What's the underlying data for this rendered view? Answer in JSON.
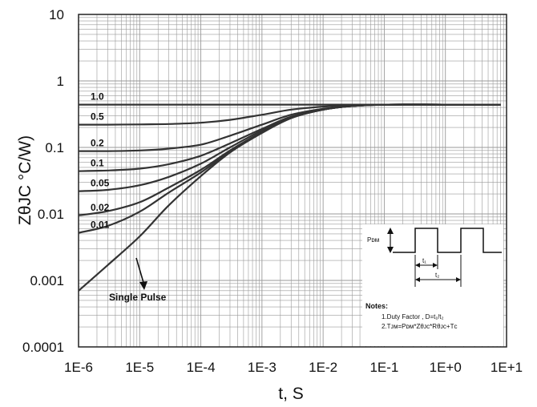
{
  "chart_data": {
    "type": "line",
    "title": "",
    "xlabel": "t, S",
    "ylabel": "ZθJC °C/W)",
    "xscale": "log",
    "yscale": "log",
    "xlim": [
      1e-06,
      10
    ],
    "ylim": [
      0.0001,
      10
    ],
    "grid": true,
    "x_tick_labels": [
      "1E-6",
      "1E-5",
      "1E-4",
      "1E-3",
      "1E-2",
      "1E-1",
      "1E+0",
      "1E+1"
    ],
    "y_tick_labels": [
      "0.0001",
      "0.001",
      "0.01",
      "0.1",
      "1",
      "10"
    ],
    "x": [
      1e-06,
      3e-06,
      1e-05,
      3e-05,
      0.0001,
      0.0003,
      0.001,
      0.003,
      0.01,
      0.03,
      0.1,
      1,
      8
    ],
    "series": [
      {
        "name": "1.0",
        "values": [
          0.44,
          0.44,
          0.44,
          0.44,
          0.44,
          0.44,
          0.44,
          0.44,
          0.44,
          0.44,
          0.44,
          0.44,
          0.44
        ]
      },
      {
        "name": "0.5",
        "values": [
          0.22,
          0.22,
          0.222,
          0.225,
          0.235,
          0.26,
          0.31,
          0.37,
          0.41,
          0.43,
          0.44,
          0.44,
          0.44
        ]
      },
      {
        "name": "0.2",
        "values": [
          0.088,
          0.088,
          0.09,
          0.096,
          0.11,
          0.15,
          0.22,
          0.31,
          0.38,
          0.42,
          0.44,
          0.44,
          0.44
        ]
      },
      {
        "name": "0.1",
        "values": [
          0.044,
          0.045,
          0.048,
          0.056,
          0.075,
          0.115,
          0.19,
          0.29,
          0.37,
          0.42,
          0.44,
          0.44,
          0.44
        ]
      },
      {
        "name": "0.05",
        "values": [
          0.022,
          0.023,
          0.027,
          0.036,
          0.057,
          0.1,
          0.18,
          0.28,
          0.37,
          0.42,
          0.44,
          0.44,
          0.44
        ]
      },
      {
        "name": "0.02",
        "values": [
          0.0095,
          0.011,
          0.015,
          0.025,
          0.046,
          0.09,
          0.17,
          0.28,
          0.37,
          0.42,
          0.44,
          0.44,
          0.44
        ]
      },
      {
        "name": "0.01",
        "values": [
          0.0052,
          0.0066,
          0.0108,
          0.021,
          0.042,
          0.087,
          0.17,
          0.28,
          0.37,
          0.42,
          0.44,
          0.44,
          0.44
        ]
      },
      {
        "name": "Single Pulse",
        "values": [
          0.0007,
          0.0017,
          0.0046,
          0.0135,
          0.037,
          0.084,
          0.165,
          0.275,
          0.37,
          0.42,
          0.44,
          0.44,
          0.44
        ]
      }
    ],
    "inset": {
      "pdm_label": "Pᴅᴍ",
      "t1_label": "t₁",
      "t2_label": "t₂",
      "notes_title": "Notes:",
      "note_1": "1.Duty Factor , D=t₁/t₂",
      "note_2": "2.Tᴊᴍ=Pᴅᴍ*Zθᴊᴄ*Rθᴊᴄ+Tᴄ"
    }
  },
  "colors": {
    "curve": "#333333",
    "grid": "#9a9a9a",
    "axis": "#222222"
  }
}
